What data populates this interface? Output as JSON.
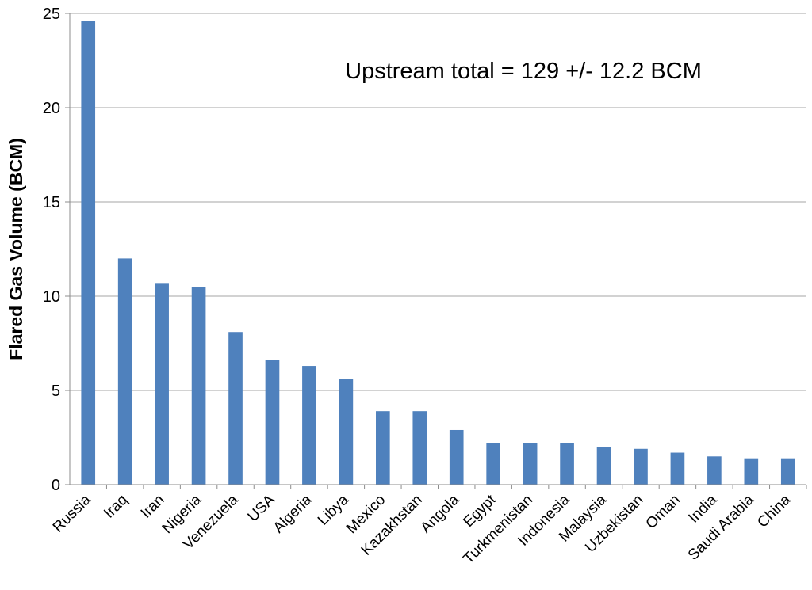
{
  "chart_data": {
    "type": "bar",
    "title": "",
    "xlabel": "",
    "ylabel": "Flared Gas Volume (BCM)",
    "annotation": "Upstream total = 129 +/- 12.2 BCM",
    "ylim": [
      0,
      25
    ],
    "yticks": [
      0,
      5,
      10,
      15,
      20,
      25
    ],
    "grid": true,
    "legend": "none",
    "bar_color": "#4f81bd",
    "gridline_color": "#a6a6a6",
    "categories": [
      "Russia",
      "Iraq",
      "Iran",
      "Nigeria",
      "Venezuela",
      "USA",
      "Algeria",
      "Libya",
      "Mexico",
      "Kazakhstan",
      "Angola",
      "Egypt",
      "Turkmenistan",
      "Indonesia",
      "Malaysia",
      "Uzbekistan",
      "Oman",
      "India",
      "Saudi Arabia",
      "China"
    ],
    "values": [
      24.6,
      12.0,
      10.7,
      10.5,
      8.1,
      6.6,
      6.3,
      5.6,
      3.9,
      3.9,
      2.9,
      2.2,
      2.2,
      2.2,
      2.0,
      1.9,
      1.7,
      1.5,
      1.4,
      1.4
    ]
  }
}
